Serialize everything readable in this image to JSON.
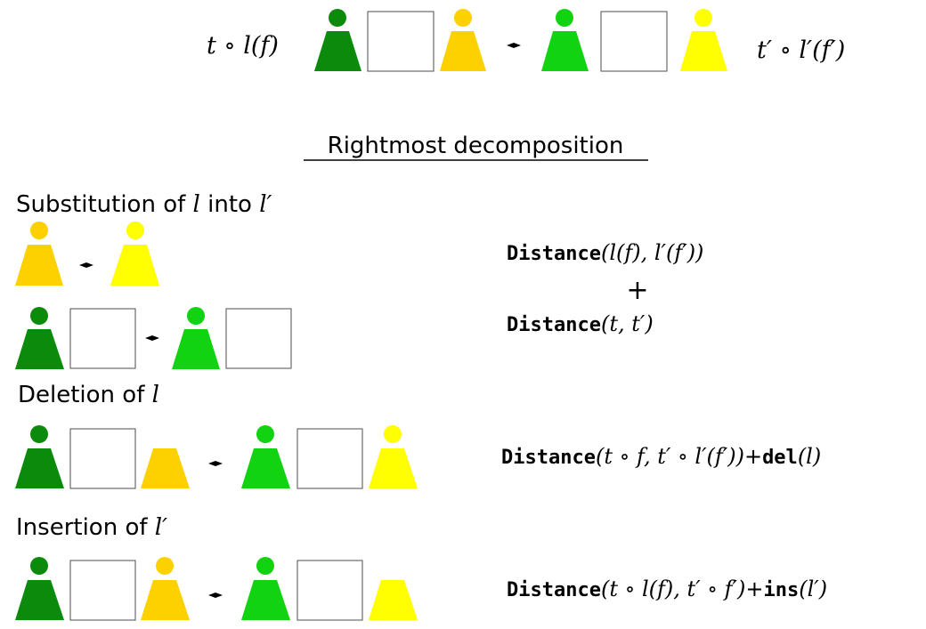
{
  "colors": {
    "dark_green": "#0b8a0b",
    "bright_green": "#11d311",
    "orange_yellow": "#fdd000",
    "yellow": "#ffff00",
    "box_stroke": "#4d4d4d",
    "text": "#000000"
  },
  "icons": {
    "person": "person-icon",
    "box": "subforest-box",
    "arrow": "double-arrow-icon"
  },
  "top": {
    "left_label": "t ∘ l(f)",
    "right_label": "t′ ∘ l′(f′)"
  },
  "heading": "Rightmost decomposition",
  "sections": {
    "substitution": {
      "title_pre": "Substitution of ",
      "title_var1": "l",
      "title_mid": " into ",
      "title_var2": "l′",
      "formula_line1_fn": "Distance",
      "formula_line1_args": "(l(f), l′(f′))",
      "plus": "+",
      "formula_line2_fn": "Distance",
      "formula_line2_args": "(t, t′)"
    },
    "deletion": {
      "title_pre": "Deletion of ",
      "title_var": "l",
      "formula_fn": "Distance",
      "formula_args": "(t ∘ f, t′ ∘ l′(f′))",
      "formula_op": "+",
      "formula_fn2": "del",
      "formula_args2": "(l)"
    },
    "insertion": {
      "title_pre": "Insertion of ",
      "title_var": "l′",
      "formula_fn": "Distance",
      "formula_args": "(t ∘ l(f), t′ ∘ f′)",
      "formula_op": "+",
      "formula_fn2": "ins",
      "formula_args2": "(l′)"
    }
  }
}
